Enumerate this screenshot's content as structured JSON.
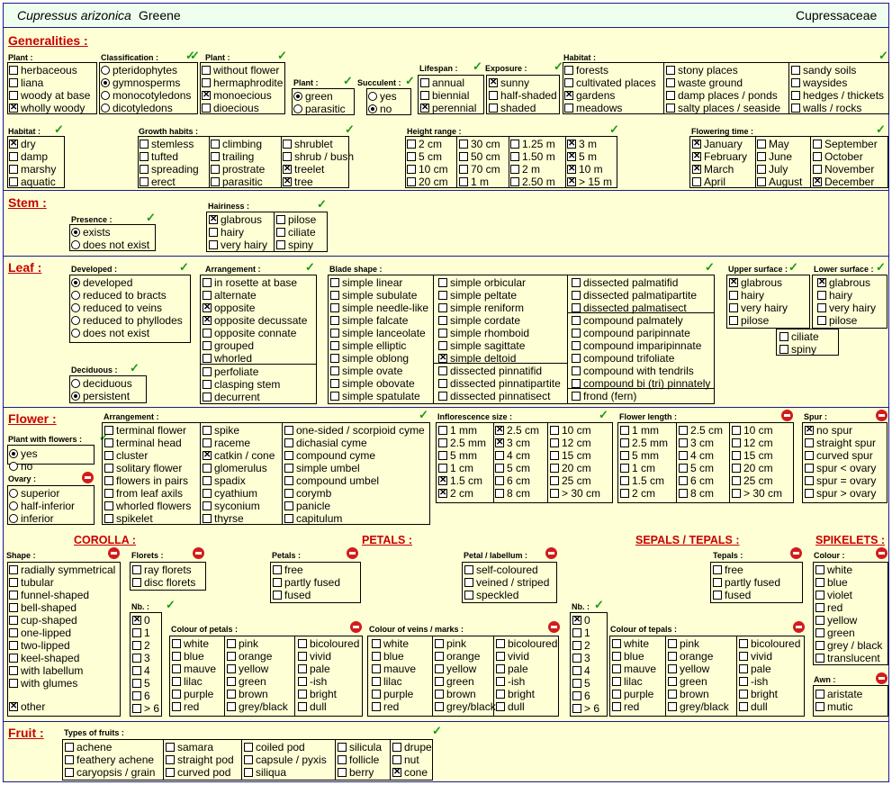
{
  "header": {
    "species": "Cupressus arizonica",
    "author": "Greene",
    "family": "Cupressaceae"
  },
  "sections": {
    "generalities": "Generalities :",
    "stem": "Stem :",
    "leaf": "Leaf :",
    "flower": "Flower :",
    "fruit": "Fruit :",
    "corolla": "COROLLA :",
    "petals": "PETALS :",
    "sepals": "SEPALS / TEPALS :",
    "spikelets": "SPIKELETS :"
  },
  "labels": {
    "plant": "Plant :",
    "classification": "Classification :",
    "plant2": "Plant :",
    "plant3": "Plant :",
    "succulent": "Succulent :",
    "lifespan": "Lifespan :",
    "exposure": "Exposure :",
    "habitat": "Habitat :",
    "habitat2": "Habitat :",
    "growth": "Growth habits :",
    "height": "Height range :",
    "flowering": "Flowering time :",
    "presence": "Presence :",
    "hairiness": "Hairiness :",
    "developed": "Developed :",
    "arrangement": "Arrangement :",
    "blade": "Blade shape :",
    "upper": "Upper surface :",
    "lower": "Lower surface :",
    "deciduous": "Deciduous :",
    "pwf": "Plant with flowers :",
    "farr": "Arrangement :",
    "infl": "Inflorescence size :",
    "flen": "Flower length :",
    "spur": "Spur :",
    "ovary": "Ovary :",
    "shape": "Shape :",
    "florets": "Florets :",
    "petals": "Petals :",
    "pl": "Petal / labellum :",
    "tepals": "Tepals :",
    "colour": "Colour :",
    "nb1": "Nb. :",
    "nb2": "Nb. :",
    "cop": "Colour of petals :",
    "cov": "Colour of veins / marks :",
    "cot": "Colour of tepals :",
    "awn": "Awn :",
    "fruits": "Types of fruits :"
  },
  "groups": {
    "plant": [
      [
        "herbaceous",
        0
      ],
      [
        "liana",
        0
      ],
      [
        "woody at base",
        0
      ],
      [
        "wholly woody",
        1
      ]
    ],
    "classification": [
      [
        "pteridophytes",
        0
      ],
      [
        "gymnosperms",
        1
      ],
      [
        "monocotyledons",
        0
      ],
      [
        "dicotyledons",
        0
      ]
    ],
    "plant2": [
      [
        "without flower",
        0
      ],
      [
        "hermaphrodite",
        0
      ],
      [
        "monoecious",
        1
      ],
      [
        "dioecious",
        0
      ]
    ],
    "plant3": [
      [
        "green",
        1
      ],
      [
        "parasitic",
        0
      ]
    ],
    "succulent": [
      [
        "yes",
        0
      ],
      [
        "no",
        1
      ]
    ],
    "lifespan": [
      [
        "annual",
        0
      ],
      [
        "biennial",
        0
      ],
      [
        "perennial",
        1
      ]
    ],
    "exposure": [
      [
        "sunny",
        1
      ],
      [
        "half-shaded",
        0
      ],
      [
        "shaded",
        0
      ]
    ],
    "habitat_c1": [
      [
        "forests",
        0
      ],
      [
        "cultivated places",
        0
      ],
      [
        "gardens",
        1
      ],
      [
        "meadows",
        0
      ]
    ],
    "habitat_c2": [
      [
        "stony places",
        0
      ],
      [
        "waste ground",
        0
      ],
      [
        "damp places / ponds",
        0
      ],
      [
        "salty places / seaside",
        0
      ]
    ],
    "habitat_c3": [
      [
        "sandy soils",
        0
      ],
      [
        "waysides",
        0
      ],
      [
        "hedges / thickets",
        0
      ],
      [
        "walls / rocks",
        0
      ]
    ],
    "habitat2": [
      [
        "dry",
        1
      ],
      [
        "damp",
        0
      ],
      [
        "marshy",
        0
      ],
      [
        "aquatic",
        0
      ]
    ],
    "growth_c1": [
      [
        "stemless",
        0
      ],
      [
        "tufted",
        0
      ],
      [
        "spreading",
        0
      ],
      [
        "erect",
        0
      ]
    ],
    "growth_c2": [
      [
        "climbing",
        0
      ],
      [
        "trailing",
        0
      ],
      [
        "prostrate",
        0
      ],
      [
        "parasitic",
        0
      ]
    ],
    "growth_c3": [
      [
        "shrublet",
        0
      ],
      [
        "shrub / bush",
        0
      ],
      [
        "treelet",
        1
      ],
      [
        "tree",
        1
      ]
    ],
    "height_c1": [
      [
        "2 cm",
        0
      ],
      [
        "5 cm",
        0
      ],
      [
        "10 cm",
        0
      ],
      [
        "20 cm",
        0
      ]
    ],
    "height_c2": [
      [
        "30 cm",
        0
      ],
      [
        "50 cm",
        0
      ],
      [
        "70 cm",
        0
      ],
      [
        "1 m",
        0
      ]
    ],
    "height_c3": [
      [
        "1.25 m",
        0
      ],
      [
        "1.50 m",
        0
      ],
      [
        "2 m",
        0
      ],
      [
        "2.50 m",
        0
      ]
    ],
    "height_c4": [
      [
        "3 m",
        1
      ],
      [
        "5 m",
        1
      ],
      [
        "10 m",
        1
      ],
      [
        "> 15 m",
        1
      ]
    ],
    "flowering_c1": [
      [
        "January",
        1
      ],
      [
        "February",
        1
      ],
      [
        "March",
        1
      ],
      [
        "April",
        0
      ]
    ],
    "flowering_c2": [
      [
        "May",
        0
      ],
      [
        "June",
        0
      ],
      [
        "July",
        0
      ],
      [
        "August",
        0
      ]
    ],
    "flowering_c3": [
      [
        "September",
        0
      ],
      [
        "October",
        0
      ],
      [
        "November",
        0
      ],
      [
        "December",
        1
      ]
    ],
    "presence": [
      [
        "exists",
        1
      ],
      [
        "does not exist",
        0
      ]
    ],
    "hair_c1": [
      [
        "glabrous",
        1
      ],
      [
        "hairy",
        0
      ],
      [
        "very hairy",
        0
      ]
    ],
    "hair_c2": [
      [
        "pilose",
        0
      ],
      [
        "ciliate",
        0
      ],
      [
        "spiny",
        0
      ]
    ],
    "developed": [
      [
        "developed",
        1
      ],
      [
        "reduced to bracts",
        0
      ],
      [
        "reduced to veins",
        0
      ],
      [
        "reduced to phyllodes",
        0
      ],
      [
        "does not exist",
        0
      ]
    ],
    "deciduous": [
      [
        "deciduous",
        0
      ],
      [
        "persistent",
        1
      ]
    ],
    "arr_a": [
      [
        "in rosette at base",
        0
      ],
      [
        "alternate",
        0
      ],
      [
        "opposite",
        1
      ],
      [
        "opposite decussate",
        1
      ],
      [
        "opposite connate",
        0
      ],
      [
        "grouped",
        0
      ],
      [
        "whorled",
        0
      ]
    ],
    "arr_b": [
      [
        "perfoliate",
        0
      ],
      [
        "clasping stem",
        0
      ],
      [
        "decurrent",
        0
      ]
    ],
    "blade_c1": [
      [
        "simple linear",
        0
      ],
      [
        "simple subulate",
        0
      ],
      [
        "simple needle-like",
        0
      ],
      [
        "simple falcate",
        0
      ],
      [
        "simple lanceolate",
        0
      ],
      [
        "simple elliptic",
        0
      ],
      [
        "simple oblong",
        0
      ],
      [
        "simple ovate",
        0
      ],
      [
        "simple obovate",
        0
      ],
      [
        "simple spatulate",
        0
      ]
    ],
    "blade_c2a": [
      [
        "simple orbicular",
        0
      ],
      [
        "simple peltate",
        0
      ],
      [
        "simple reniform",
        0
      ],
      [
        "simple cordate",
        0
      ],
      [
        "simple rhomboid",
        0
      ],
      [
        "simple sagittate",
        0
      ],
      [
        "simple deltoid",
        1
      ]
    ],
    "blade_c2b": [
      [
        "dissected pinnatifid",
        0
      ],
      [
        "dissected pinnatipartite",
        0
      ],
      [
        "dissected pinnatisect",
        0
      ]
    ],
    "blade_c3a": [
      [
        "dissected palmatifid",
        0
      ],
      [
        "dissected palmatipartite",
        0
      ],
      [
        "dissected palmatisect",
        0
      ]
    ],
    "blade_c3b": [
      [
        "compound palmately",
        0
      ],
      [
        "compound paripinnate",
        0
      ],
      [
        "compound imparipinnate",
        0
      ],
      [
        "compound trifoliate",
        0
      ],
      [
        "compound with tendrils",
        0
      ],
      [
        "compound bi (tri) pinnately",
        0
      ]
    ],
    "blade_c3c": [
      [
        "frond  (fern)",
        0
      ]
    ],
    "upper": [
      [
        "glabrous",
        1
      ],
      [
        "hairy",
        0
      ],
      [
        "very hairy",
        0
      ],
      [
        "pilose",
        0
      ]
    ],
    "lower": [
      [
        "glabrous",
        1
      ],
      [
        "hairy",
        0
      ],
      [
        "very hairy",
        0
      ],
      [
        "pilose",
        0
      ]
    ],
    "surf_extra": [
      [
        "ciliate",
        0
      ],
      [
        "spiny",
        0
      ]
    ],
    "farr_c1": [
      [
        "terminal flower",
        0
      ],
      [
        "terminal head",
        0
      ],
      [
        "cluster",
        0
      ],
      [
        "solitary flower",
        0
      ],
      [
        "flowers in pairs",
        0
      ],
      [
        "from leaf axils",
        0
      ],
      [
        "whorled flowers",
        0
      ],
      [
        "spikelet",
        0
      ]
    ],
    "farr_c2": [
      [
        "spike",
        0
      ],
      [
        "raceme",
        0
      ],
      [
        "catkin / cone",
        1
      ],
      [
        "glomerulus",
        0
      ],
      [
        "spadix",
        0
      ],
      [
        "cyathium",
        0
      ],
      [
        "syconium",
        0
      ],
      [
        "thyrse",
        0
      ]
    ],
    "farr_c3": [
      [
        "one-sided / scorpioid cyme",
        0
      ],
      [
        "dichasial cyme",
        0
      ],
      [
        "compound cyme",
        0
      ],
      [
        "simple umbel",
        0
      ],
      [
        "compound umbel",
        0
      ],
      [
        "corymb",
        0
      ],
      [
        "panicle",
        0
      ],
      [
        "capitulum",
        0
      ]
    ],
    "infl_c1": [
      [
        "1 mm",
        0
      ],
      [
        "2.5 mm",
        0
      ],
      [
        "5 mm",
        0
      ],
      [
        "1 cm",
        0
      ],
      [
        "1.5 cm",
        1
      ],
      [
        "2 cm",
        1
      ]
    ],
    "infl_c2": [
      [
        "2.5 cm",
        1
      ],
      [
        "3 cm",
        1
      ],
      [
        "4 cm",
        0
      ],
      [
        "5 cm",
        0
      ],
      [
        "6 cm",
        0
      ],
      [
        "8 cm",
        0
      ]
    ],
    "infl_c3": [
      [
        "10 cm",
        0
      ],
      [
        "12 cm",
        0
      ],
      [
        "15 cm",
        0
      ],
      [
        "20 cm",
        0
      ],
      [
        "25 cm",
        0
      ],
      [
        "> 30 cm",
        0
      ]
    ],
    "flen_c1": [
      [
        "1 mm",
        0
      ],
      [
        "2.5 mm",
        0
      ],
      [
        "5 mm",
        0
      ],
      [
        "1 cm",
        0
      ],
      [
        "1.5 cm",
        0
      ],
      [
        "2 cm",
        0
      ]
    ],
    "flen_c2": [
      [
        "2.5 cm",
        0
      ],
      [
        "3 cm",
        0
      ],
      [
        "4 cm",
        0
      ],
      [
        "5 cm",
        0
      ],
      [
        "6 cm",
        0
      ],
      [
        "8 cm",
        0
      ]
    ],
    "flen_c3": [
      [
        "10 cm",
        0
      ],
      [
        "12 cm",
        0
      ],
      [
        "15 cm",
        0
      ],
      [
        "20 cm",
        0
      ],
      [
        "25 cm",
        0
      ],
      [
        "> 30 cm",
        0
      ]
    ],
    "spur": [
      [
        "no spur",
        1
      ],
      [
        "straight spur",
        0
      ],
      [
        "curved spur",
        0
      ],
      [
        "spur < ovary",
        0
      ],
      [
        "spur = ovary",
        0
      ],
      [
        "spur > ovary",
        0
      ]
    ],
    "ovary": [
      [
        "superior",
        0
      ],
      [
        "half-inferior",
        0
      ],
      [
        "inferior",
        0
      ]
    ],
    "shape": [
      [
        "radially symmetrical",
        0
      ],
      [
        "tubular",
        0
      ],
      [
        "funnel-shaped",
        0
      ],
      [
        "bell-shaped",
        0
      ],
      [
        "cup-shaped",
        0
      ],
      [
        "one-lipped",
        0
      ],
      [
        "two-lipped",
        0
      ],
      [
        "keel-shaped",
        0
      ],
      [
        "with labellum",
        0
      ],
      [
        "with glumes",
        0
      ]
    ],
    "shape_other": [
      [
        "other",
        1
      ]
    ],
    "florets": [
      [
        "ray florets",
        0
      ],
      [
        "disc florets",
        0
      ]
    ],
    "petals": [
      [
        "free",
        0
      ],
      [
        "partly fused",
        0
      ],
      [
        "fused",
        0
      ]
    ],
    "pl": [
      [
        "self-coloured",
        0
      ],
      [
        "veined / striped",
        0
      ],
      [
        "speckled",
        0
      ]
    ],
    "tepals": [
      [
        "free",
        0
      ],
      [
        "partly fused",
        0
      ],
      [
        "fused",
        0
      ]
    ],
    "spk_colour": [
      [
        "white",
        0
      ],
      [
        "blue",
        0
      ],
      [
        "violet",
        0
      ],
      [
        "red",
        0
      ],
      [
        "yellow",
        0
      ],
      [
        "green",
        0
      ],
      [
        "grey / black",
        0
      ],
      [
        "translucent",
        0
      ]
    ],
    "awn": [
      [
        "aristate",
        0
      ],
      [
        "mutic",
        0
      ]
    ],
    "nb1": [
      [
        "0",
        1
      ],
      [
        "1",
        0
      ],
      [
        "2",
        0
      ],
      [
        "3",
        0
      ],
      [
        "4",
        0
      ],
      [
        "5",
        0
      ],
      [
        "6",
        0
      ],
      [
        "> 6",
        0
      ]
    ],
    "nb2": [
      [
        "0",
        1
      ],
      [
        "1",
        0
      ],
      [
        "2",
        0
      ],
      [
        "3",
        0
      ],
      [
        "4",
        0
      ],
      [
        "5",
        0
      ],
      [
        "6",
        0
      ],
      [
        "> 6",
        0
      ]
    ],
    "col_c1": [
      [
        "white",
        0
      ],
      [
        "blue",
        0
      ],
      [
        "mauve",
        0
      ],
      [
        "lilac",
        0
      ],
      [
        "purple",
        0
      ],
      [
        "red",
        0
      ]
    ],
    "col_c2": [
      [
        "pink",
        0
      ],
      [
        "orange",
        0
      ],
      [
        "yellow",
        0
      ],
      [
        "green",
        0
      ],
      [
        "brown",
        0
      ],
      [
        "grey/black",
        0
      ]
    ],
    "col_c3": [
      [
        "bicoloured",
        0
      ],
      [
        "vivid",
        0
      ],
      [
        "pale",
        0
      ],
      [
        "-ish",
        0
      ],
      [
        "bright",
        0
      ],
      [
        "dull",
        0
      ]
    ],
    "fruit_c1": [
      [
        "achene",
        0
      ],
      [
        "feathery achene",
        0
      ],
      [
        "caryopsis / grain",
        0
      ]
    ],
    "fruit_c2": [
      [
        "samara",
        0
      ],
      [
        "straight pod",
        0
      ],
      [
        "curved pod",
        0
      ]
    ],
    "fruit_c3": [
      [
        "coiled pod",
        0
      ],
      [
        "capsule / pyxis",
        0
      ],
      [
        "siliqua",
        0
      ]
    ],
    "fruit_c4": [
      [
        "silicula",
        0
      ],
      [
        "follicle",
        0
      ],
      [
        "berry",
        0
      ]
    ],
    "fruit_c5": [
      [
        "drupe",
        0
      ],
      [
        "nut",
        0
      ],
      [
        "cone",
        1
      ]
    ],
    "pwf": [
      [
        "yes",
        1
      ],
      [
        "no",
        0
      ]
    ]
  }
}
